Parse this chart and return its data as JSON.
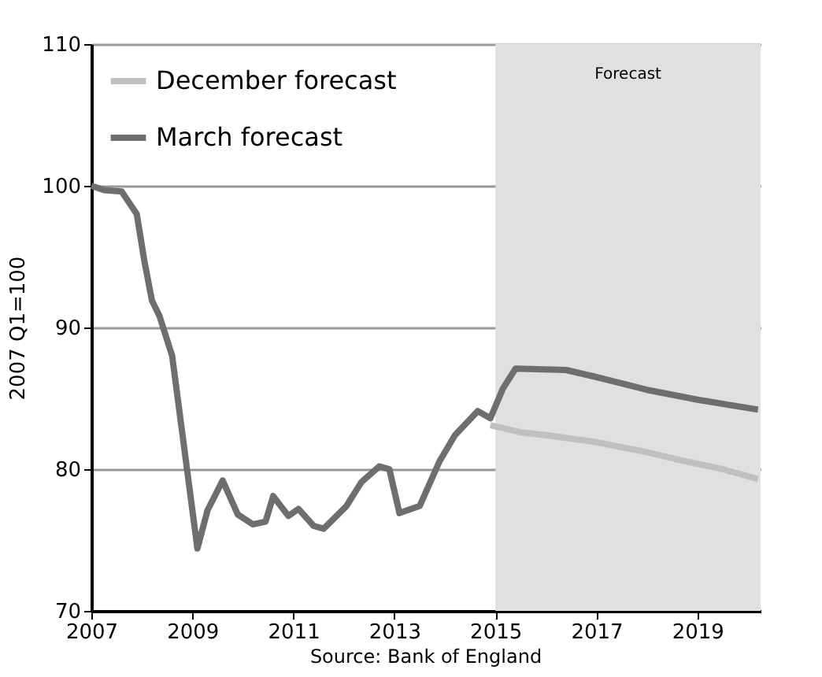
{
  "chart_data": {
    "type": "line",
    "ylabel": "2007 Q1=100",
    "annotations": [
      "Source: Bank of England"
    ],
    "xlim": [
      2007,
      2020.25
    ],
    "xticks": [
      2007,
      2009,
      2011,
      2013,
      2015,
      2017,
      2019
    ],
    "ylim": [
      70,
      110
    ],
    "yticks": [
      70,
      80,
      90,
      100,
      110
    ],
    "grid": "y",
    "legend": "top left",
    "line_style": "solid",
    "marker": "none",
    "bands": [
      {
        "axis": "x",
        "from": 2015,
        "to": 2020.25,
        "label": "Forecast",
        "color": "#e0e0e0"
      }
    ],
    "series": [
      {
        "name": "December forecast",
        "color": "#c0c0c0",
        "x": [
          2014.9,
          2015.5,
          2016.0,
          2017.0,
          2018.0,
          2018.7,
          2019.5,
          2020.2
        ],
        "values": [
          83.1,
          82.6,
          82.4,
          81.9,
          81.2,
          80.6,
          80.0,
          79.3
        ]
      },
      {
        "name": "March forecast",
        "color": "#6e6e6e",
        "x": [
          2007.0,
          2007.25,
          2007.6,
          2007.9,
          2008.05,
          2008.2,
          2008.35,
          2008.6,
          2009.1,
          2009.3,
          2009.6,
          2009.9,
          2010.2,
          2010.45,
          2010.6,
          2010.9,
          2011.1,
          2011.4,
          2011.6,
          2012.05,
          2012.35,
          2012.7,
          2012.9,
          2013.1,
          2013.5,
          2013.9,
          2014.2,
          2014.65,
          2014.9,
          2015.15,
          2015.4,
          2016.4,
          2017.0,
          2018.0,
          2019.0,
          2020.2
        ],
        "values": [
          100,
          99.7,
          99.6,
          98,
          94.7,
          91.9,
          90.8,
          88,
          74.4,
          77.1,
          79.2,
          76.8,
          76.1,
          76.3,
          78.1,
          76.7,
          77.2,
          76.0,
          75.8,
          77.4,
          79.1,
          80.2,
          80.0,
          76.9,
          77.4,
          80.6,
          82.4,
          84.1,
          83.6,
          85.7,
          87.1,
          87.0,
          86.5,
          85.6,
          84.9,
          84.2
        ]
      }
    ]
  }
}
